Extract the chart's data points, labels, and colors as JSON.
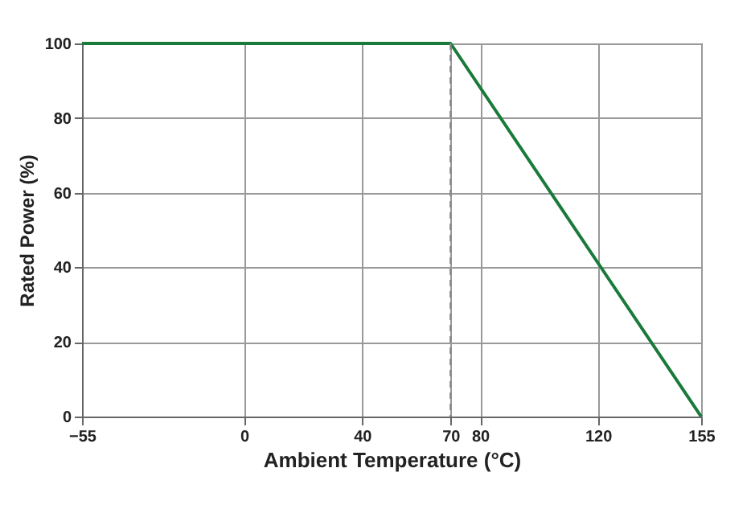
{
  "chart_data": {
    "type": "line",
    "xlabel": "Ambient Temperature (°C)",
    "ylabel": "Rated Power (%)",
    "x": [
      -55,
      70,
      155
    ],
    "series": [
      {
        "color": "#1a7a3a",
        "values": [
          100,
          100,
          0
        ]
      }
    ],
    "xlim": [
      -55,
      155
    ],
    "xticks": [
      -55,
      0,
      40,
      70,
      80,
      120,
      155
    ],
    "ylim": [
      0,
      100
    ],
    "yticks": [
      0,
      20,
      40,
      60,
      80,
      100
    ],
    "grid": true,
    "marker": "none",
    "line_style": "solid",
    "ref_lines": [
      {
        "axis": "x",
        "value": 70,
        "color": "#888888",
        "line_style": "dashed"
      }
    ]
  }
}
